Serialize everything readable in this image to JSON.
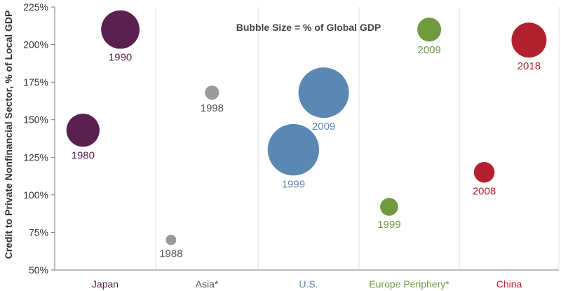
{
  "chart_data": {
    "type": "scatter",
    "ylabel": "Credit to Private Nonfinancial Sector, % of Local GDP",
    "annotation": "Bubble Size = % of Global GDP",
    "ylim": [
      50,
      225
    ],
    "yticks": [
      50,
      75,
      100,
      125,
      150,
      175,
      200,
      225
    ],
    "ytick_labels": [
      "50%",
      "75%",
      "100%",
      "125%",
      "150%",
      "175%",
      "200%",
      "225%"
    ],
    "grid": "vertical separators between categories",
    "categories": [
      {
        "label": "Japan",
        "color": "#5a2150"
      },
      {
        "label": "Asia*",
        "color": "#555555"
      },
      {
        "label": "U.S.",
        "color": "#5b87b3"
      },
      {
        "label": "Europe Periphery*",
        "color": "#6f9a3e"
      },
      {
        "label": "China",
        "color": "#b32130"
      }
    ],
    "bubbles": [
      {
        "category": "Japan",
        "label": "1980",
        "offset": -0.22,
        "y": 143,
        "size": 10.2,
        "color": "#5a2150"
      },
      {
        "category": "Japan",
        "label": "1990",
        "offset": 0.15,
        "y": 210,
        "size": 14.0,
        "color": "#5a2150"
      },
      {
        "category": "Asia*",
        "label": "1988",
        "offset": -0.35,
        "y": 70,
        "size": 0.7,
        "color": "#9b9b9b",
        "label_color": "#555555"
      },
      {
        "category": "Asia*",
        "label": "1998",
        "offset": 0.05,
        "y": 168,
        "size": 1.5,
        "color": "#9b9b9b",
        "label_color": "#555555"
      },
      {
        "category": "U.S.",
        "label": "1999",
        "offset": -0.15,
        "y": 130,
        "size": 26.0,
        "color": "#5b87b3"
      },
      {
        "category": "U.S.",
        "label": "2009",
        "offset": 0.15,
        "y": 168,
        "size": 25.0,
        "color": "#5b87b3"
      },
      {
        "category": "Europe Periphery*",
        "label": "1999",
        "offset": -0.2,
        "y": 92,
        "size": 2.6,
        "color": "#6f9a3e"
      },
      {
        "category": "Europe Periphery*",
        "label": "2009",
        "offset": 0.2,
        "y": 210,
        "size": 5.0,
        "color": "#6f9a3e"
      },
      {
        "category": "China",
        "label": "2008",
        "offset": -0.25,
        "y": 115,
        "size": 3.6,
        "color": "#b32130"
      },
      {
        "category": "China",
        "label": "2018",
        "offset": 0.2,
        "y": 203,
        "size": 11.5,
        "color": "#b32130"
      }
    ]
  }
}
